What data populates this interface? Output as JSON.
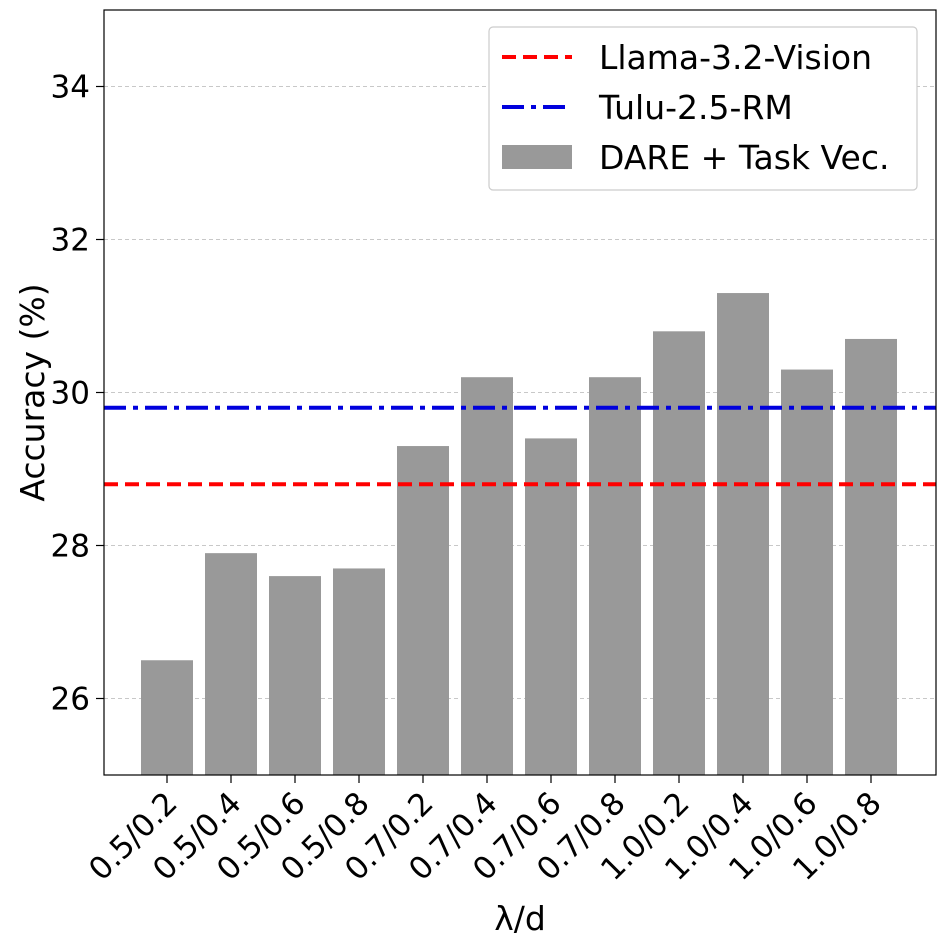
{
  "chart_data": {
    "type": "bar",
    "title": "",
    "xlabel": "λ/d",
    "ylabel": "Accuracy (%)",
    "ylim": [
      25,
      35
    ],
    "yticks": [
      26,
      28,
      30,
      32,
      34
    ],
    "grid": "y-dashed",
    "legend_position": "top-right",
    "categories": [
      "0.5/0.2",
      "0.5/0.4",
      "0.5/0.6",
      "0.5/0.8",
      "0.7/0.2",
      "0.7/0.4",
      "0.7/0.6",
      "0.7/0.8",
      "1.0/0.2",
      "1.0/0.4",
      "1.0/0.6",
      "1.0/0.8"
    ],
    "series": [
      {
        "name": "DARE + Task Vec.",
        "kind": "bar",
        "color": "#999999",
        "values": [
          26.5,
          27.9,
          27.6,
          27.7,
          29.3,
          30.2,
          29.4,
          30.2,
          30.8,
          31.3,
          30.3,
          30.7
        ]
      }
    ],
    "reference_lines": [
      {
        "name": "Llama-3.2-Vision",
        "value": 28.8,
        "color": "#ff0000",
        "style": "dashed"
      },
      {
        "name": "Tulu-2.5-RM",
        "value": 29.8,
        "color": "#0000dd",
        "style": "dashdot"
      }
    ]
  }
}
